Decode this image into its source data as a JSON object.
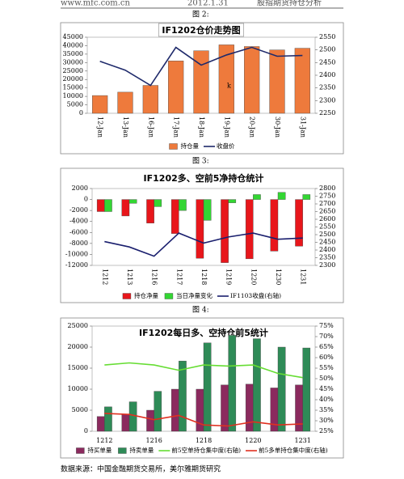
{
  "header": {
    "site": "www.mfc.com.cn",
    "date": "2012.1.31",
    "title": "股指期货持仓分析"
  },
  "captions": [
    "图 2:",
    "图 3:",
    "图 4:"
  ],
  "source": "数据来源：中国金融期货交易所，美尔雅期货研究",
  "chart_data": [
    {
      "type": "bar",
      "title": "IF1202仓价走势图",
      "categories": [
        "12-Jan",
        "13-Jan",
        "16-Jan",
        "17-Jan",
        "18-Jan",
        "19-Jan",
        "20-Jan",
        "30-Jan",
        "31-Jan"
      ],
      "series": [
        {
          "name": "持仓量",
          "type": "bar",
          "color": "#ee7a3c",
          "values": [
            10500,
            12500,
            16500,
            31000,
            37000,
            40500,
            39500,
            37500,
            38500
          ]
        },
        {
          "name": "收盘价",
          "type": "line",
          "axis": "y2",
          "color": "#1f2a6b",
          "values": [
            2455,
            2420,
            2360,
            2510,
            2440,
            2480,
            2510,
            2475,
            2478
          ]
        }
      ],
      "annotation": "k",
      "ylim": [
        0,
        45000
      ],
      "yticks": [
        0,
        5000,
        10000,
        15000,
        20000,
        25000,
        30000,
        35000,
        40000,
        45000
      ],
      "y2lim": [
        2250,
        2550
      ],
      "y2ticks": [
        2250,
        2300,
        2350,
        2400,
        2450,
        2500,
        2550
      ]
    },
    {
      "type": "bar",
      "title": "IF1202多、空前5净持仓统计",
      "categories": [
        "1212",
        "1213",
        "1216",
        "1217",
        "1218",
        "1219",
        "1220",
        "1230",
        "1231"
      ],
      "series": [
        {
          "name": "持仓净量",
          "type": "bar",
          "color": "#e8161b",
          "values": [
            -2200,
            -3000,
            -4300,
            -6200,
            -10700,
            -11500,
            -10800,
            -9400,
            -8500
          ]
        },
        {
          "name": "当日净量变化",
          "type": "bar",
          "color": "#33d633",
          "values": [
            -2200,
            -700,
            -1300,
            -2000,
            -3800,
            -600,
            900,
            1300,
            900
          ]
        },
        {
          "name": "IF1103收盘(右轴)",
          "type": "line",
          "axis": "y2",
          "color": "#1a1f6e",
          "values": [
            2455,
            2420,
            2360,
            2510,
            2445,
            2485,
            2510,
            2470,
            2478
          ]
        }
      ],
      "ylim": [
        -12000,
        2000
      ],
      "yticks": [
        -12000,
        -10000,
        -8000,
        -6000,
        -4000,
        -2000,
        0,
        2000
      ],
      "y2lim": [
        2300,
        2800
      ],
      "y2ticks": [
        2300,
        2350,
        2400,
        2450,
        2500,
        2550,
        2600,
        2650,
        2700,
        2750,
        2800
      ]
    },
    {
      "type": "bar",
      "title": "IF1202每日多、空持仓前5统计",
      "categories": [
        "1212",
        null,
        "1216",
        null,
        "1218",
        null,
        "1220",
        null,
        "1231"
      ],
      "series": [
        {
          "name": "持买单量",
          "type": "bar",
          "color": "#8b2a5e",
          "values": [
            3500,
            4000,
            5000,
            10000,
            10000,
            11000,
            11200,
            10300,
            11000
          ]
        },
        {
          "name": "持卖单量",
          "type": "bar",
          "color": "#2e8b57",
          "values": [
            5800,
            7000,
            9500,
            16700,
            21000,
            22800,
            22000,
            20000,
            19800
          ]
        },
        {
          "name": "前5空单持仓集中度(右轴)",
          "type": "line",
          "axis": "y2",
          "color": "#66dd33",
          "values": [
            56.5,
            57.5,
            56.5,
            54,
            56.5,
            56,
            56.5,
            52.5,
            50.5
          ]
        },
        {
          "name": "前5多单持仓集中度(右轴)",
          "type": "line",
          "axis": "y2",
          "color": "#e03020",
          "values": [
            33.5,
            33,
            30.5,
            32.5,
            28,
            27.5,
            29.5,
            28,
            28.5
          ]
        }
      ],
      "ylim": [
        0,
        25000
      ],
      "yticks": [
        0,
        5000,
        10000,
        15000,
        20000,
        25000
      ],
      "y2lim": [
        25,
        75
      ],
      "y2ticks": [
        {
          "value": 25,
          "label": "25%"
        },
        {
          "value": 30,
          "label": "30%"
        },
        {
          "value": 35,
          "label": "35%"
        },
        {
          "value": 40,
          "label": "40%"
        },
        {
          "value": 45,
          "label": "45%"
        },
        {
          "value": 50,
          "label": "50%"
        },
        {
          "value": 55,
          "label": "55%"
        },
        {
          "value": 60,
          "label": "60%"
        },
        {
          "value": 65,
          "label": "65%"
        },
        {
          "value": 70,
          "label": "70%"
        },
        {
          "value": 75,
          "label": "75%"
        }
      ]
    }
  ]
}
